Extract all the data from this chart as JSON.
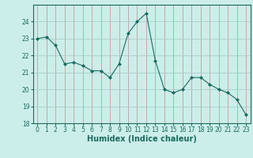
{
  "x": [
    0,
    1,
    2,
    3,
    4,
    5,
    6,
    7,
    8,
    9,
    10,
    11,
    12,
    13,
    14,
    15,
    16,
    17,
    18,
    19,
    20,
    21,
    22,
    23
  ],
  "y": [
    23.0,
    23.1,
    22.6,
    21.5,
    21.6,
    21.4,
    21.1,
    21.1,
    20.7,
    21.5,
    23.3,
    24.0,
    24.5,
    21.7,
    20.0,
    19.8,
    20.0,
    20.7,
    20.7,
    20.3,
    20.0,
    19.8,
    19.4,
    18.5
  ],
  "line_color": "#1a6b5e",
  "marker_color": "#1a6b5e",
  "bg_color": "#cceeea",
  "grid_color_major": "#aaaacc",
  "grid_color_minor": "#ccdddd",
  "xlabel": "Humidex (Indice chaleur)",
  "ylim": [
    18,
    25
  ],
  "xlim": [
    -0.5,
    23.5
  ],
  "yticks": [
    18,
    19,
    20,
    21,
    22,
    23,
    24
  ],
  "xticks": [
    0,
    1,
    2,
    3,
    4,
    5,
    6,
    7,
    8,
    9,
    10,
    11,
    12,
    13,
    14,
    15,
    16,
    17,
    18,
    19,
    20,
    21,
    22,
    23
  ],
  "tick_fontsize": 5.5,
  "label_fontsize": 7.0
}
